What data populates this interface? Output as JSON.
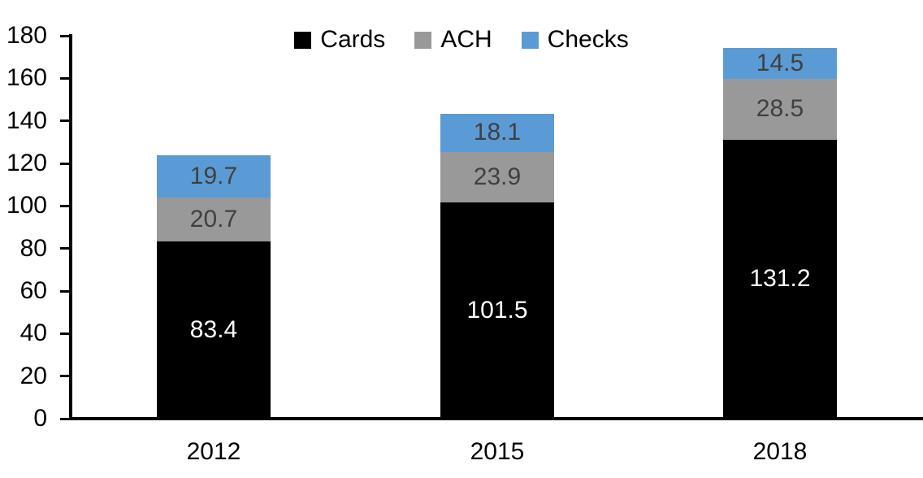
{
  "chart_data": {
    "type": "bar",
    "stacked": true,
    "title": "",
    "xlabel": "",
    "ylabel": "",
    "categories": [
      "2012",
      "2015",
      "2018"
    ],
    "series": [
      {
        "name": "Cards",
        "color": "#000000",
        "label_color": "#ffffff",
        "values": [
          83.4,
          101.5,
          131.2
        ]
      },
      {
        "name": "ACH",
        "color": "#999999",
        "label_color": "#404040",
        "values": [
          20.7,
          23.9,
          28.5
        ]
      },
      {
        "name": "Checks",
        "color": "#5B9BD5",
        "label_color": "#404040",
        "values": [
          19.7,
          18.1,
          14.5
        ]
      }
    ],
    "ylim": [
      0,
      180
    ],
    "ytick_step": 20,
    "ytick_labels": [
      "0",
      "20",
      "40",
      "60",
      "80",
      "100",
      "120",
      "140",
      "160",
      "180"
    ],
    "grid": false,
    "legend_position": "top",
    "data_labels_visible": true
  },
  "colors": {
    "axis": "#000000",
    "background": "#ffffff"
  }
}
